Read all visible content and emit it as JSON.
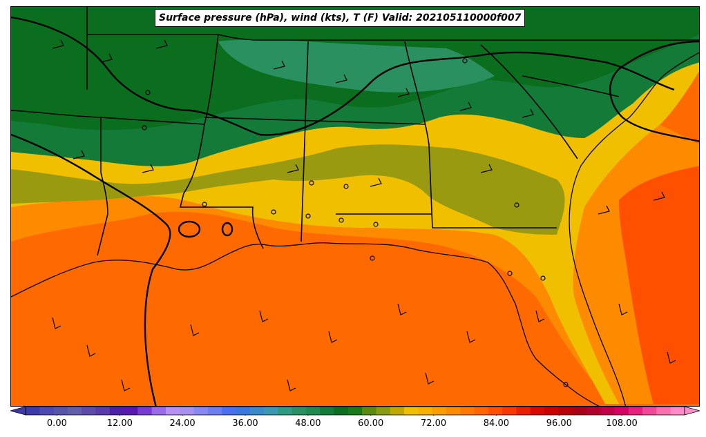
{
  "title": "Surface pressure (hPa), wind (kts), T (F) Valid: 202105110000f007",
  "colorbar": {
    "min": -6,
    "max": 120,
    "step": 3,
    "tick_values": [
      0,
      12,
      24,
      36,
      48,
      60,
      72,
      84,
      96,
      108
    ],
    "tick_labels": [
      "0.00",
      "12.00",
      "24.00",
      "36.00",
      "48.00",
      "60.00",
      "72.00",
      "84.00",
      "96.00",
      "108.00"
    ],
    "extend": "both",
    "colors": [
      "#3a3aa8",
      "#4a4ab0",
      "#5656a8",
      "#6060a8",
      "#5c4ca8",
      "#5a3aa8",
      "#4c1fa8",
      "#5a16b0",
      "#7a3ad0",
      "#9a6ae8",
      "#b890f0",
      "#a890f0",
      "#8888f0",
      "#6a80f0",
      "#4a70f0",
      "#3a78e0",
      "#3a8ac8",
      "#3a98b0",
      "#2e9a80",
      "#2a9060",
      "#1e8a4c",
      "#137a38",
      "#0b6e1e",
      "#1a7a18",
      "#5a8a10",
      "#8a9a10",
      "#c0a800",
      "#f0c000",
      "#f6b000",
      "#fa9e00",
      "#fe8a00",
      "#ff7800",
      "#ff6600",
      "#ff5000",
      "#f83800",
      "#e82000",
      "#d80a00",
      "#c80000",
      "#b80008",
      "#a80014",
      "#b0002c",
      "#c00048",
      "#d40064",
      "#e8207c",
      "#f04898",
      "#f870b0",
      "#ff8cc8"
    ]
  },
  "map": {
    "layers": "temperature fill, isobars, state borders, coastlines, wind barbs",
    "colors": {
      "cool_green": "#0b6e1e",
      "mid_green": "#2a9060",
      "olive": "#9a9a10",
      "yellow": "#f0c000",
      "orange": "#fe8a00",
      "warm_orange": "#ff6600",
      "hot_orange": "#ff5000"
    }
  }
}
